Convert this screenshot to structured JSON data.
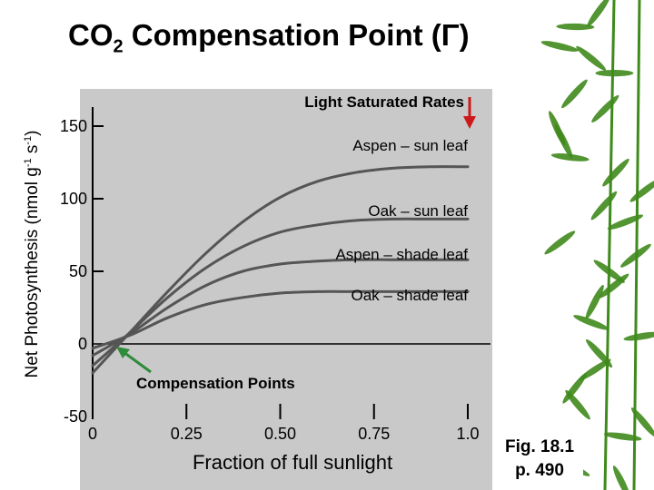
{
  "title_prefix": "CO",
  "title_sub": "2",
  "title_suffix": " Compensation Point (Γ)",
  "y_label_main": "Net Photosynthesis (nmol g",
  "y_label_sup1": "-1",
  "y_label_mid": " s",
  "y_label_sup2": "-1",
  "y_label_end": ")",
  "fig_ref_line1": "Fig. 18.1",
  "fig_ref_line2": "p. 490",
  "colors": {
    "plot_background": "#c9c9c9",
    "curve": "#555555",
    "arrow_light_saturated": "#cc1a1a",
    "arrow_compensation": "#2e8b3a",
    "bamboo": "#3f8a1c"
  },
  "chart_data": {
    "type": "line",
    "xlabel": "Fraction of full sunlight",
    "ylabel": "Net Photosynthesis (nmol g-1 s-1)",
    "xlim": [
      0,
      1.0
    ],
    "ylim": [
      -50,
      150
    ],
    "x_ticks": [
      {
        "value": 0,
        "label": "0"
      },
      {
        "value": 0.25,
        "label": "0.25"
      },
      {
        "value": 0.5,
        "label": "0.50"
      },
      {
        "value": 0.75,
        "label": "0.75"
      },
      {
        "value": 1.0,
        "label": "1.0"
      }
    ],
    "y_ticks": [
      {
        "value": 150,
        "label": "150"
      },
      {
        "value": 100,
        "label": "100"
      },
      {
        "value": 50,
        "label": "50"
      },
      {
        "value": 0,
        "label": "0"
      },
      {
        "value": -50,
        "label": "-50"
      }
    ],
    "series": [
      {
        "name": "Aspen – sun leaf",
        "x": [
          0,
          0.1,
          0.2,
          0.3,
          0.4,
          0.5,
          0.6,
          0.7,
          0.8,
          0.9,
          1.0
        ],
        "y": [
          -20,
          8,
          36,
          62,
          84,
          101,
          112,
          118,
          121,
          122,
          122
        ]
      },
      {
        "name": "Oak – sun leaf",
        "x": [
          0,
          0.1,
          0.2,
          0.3,
          0.4,
          0.5,
          0.6,
          0.7,
          0.8,
          0.9,
          1.0
        ],
        "y": [
          -15,
          8,
          32,
          52,
          67,
          77,
          82,
          85,
          86,
          86,
          86
        ]
      },
      {
        "name": "Aspen – shade leaf",
        "x": [
          0,
          0.1,
          0.2,
          0.3,
          0.4,
          0.5,
          0.6,
          0.7,
          0.8,
          0.9,
          1.0
        ],
        "y": [
          -8,
          7,
          25,
          40,
          50,
          55,
          57,
          58,
          58,
          58,
          58
        ]
      },
      {
        "name": "Oak – shade leaf",
        "x": [
          0,
          0.1,
          0.2,
          0.3,
          0.4,
          0.5,
          0.6,
          0.7,
          0.8,
          0.9,
          1.0
        ],
        "y": [
          -3,
          6,
          18,
          27,
          32,
          35,
          36,
          36,
          36,
          36,
          36
        ]
      }
    ],
    "annotations": [
      {
        "text": "Light Saturated Rates"
      },
      {
        "text": "Compensation Points"
      }
    ]
  }
}
